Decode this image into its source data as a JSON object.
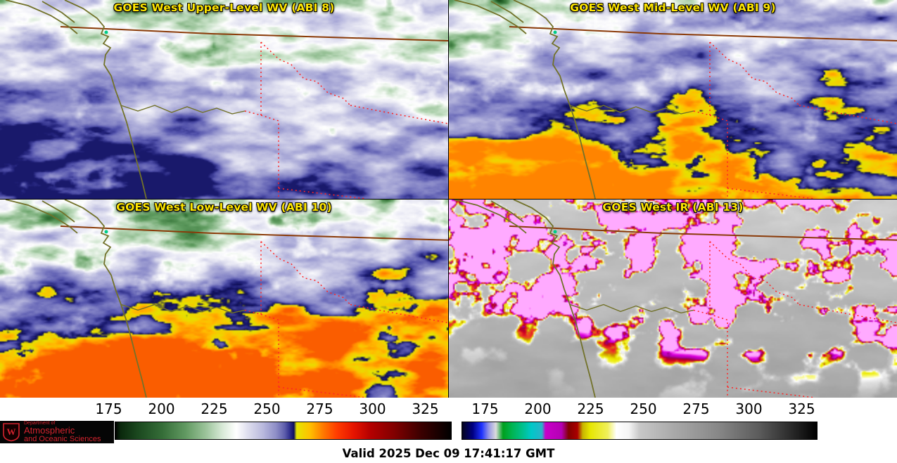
{
  "panels": [
    {
      "id": "abi8",
      "title": "GOES West Upper-Level WV (ABI 8)"
    },
    {
      "id": "abi9",
      "title": "GOES West Mid-Level WV (ABI 9)"
    },
    {
      "id": "abi10",
      "title": "GOES West Low-Level WV (ABI 10)"
    },
    {
      "id": "abi13",
      "title": "GOES West IR (ABI 13)"
    }
  ],
  "legend": {
    "left": {
      "ticks": [
        "175",
        "200",
        "225",
        "250",
        "275",
        "300",
        "325"
      ],
      "gradient": [
        [
          "0%",
          "#000000"
        ],
        [
          "1.5%",
          "#0a280c"
        ],
        [
          "7%",
          "#1c4a20"
        ],
        [
          "14%",
          "#356d38"
        ],
        [
          "21%",
          "#629a62"
        ],
        [
          "27%",
          "#9cc49b"
        ],
        [
          "32%",
          "#d9ead8"
        ],
        [
          "36%",
          "#ffffff"
        ],
        [
          "40%",
          "#dadaec"
        ],
        [
          "44%",
          "#b9b9dd"
        ],
        [
          "48%",
          "#8c8cc6"
        ],
        [
          "50.5%",
          "#5c5cab"
        ],
        [
          "52%",
          "#2e2e8e"
        ],
        [
          "53.2%",
          "#0f0f5e"
        ],
        [
          "54%",
          "#e6e600"
        ],
        [
          "58%",
          "#ffc000"
        ],
        [
          "62%",
          "#ff7800"
        ],
        [
          "66%",
          "#ff3c00"
        ],
        [
          "71%",
          "#e61400"
        ],
        [
          "76%",
          "#b40000"
        ],
        [
          "83%",
          "#820000"
        ],
        [
          "91%",
          "#3c0000"
        ],
        [
          "100%",
          "#000000"
        ]
      ]
    },
    "right": {
      "ticks": [
        "175",
        "200",
        "225",
        "250",
        "275",
        "300",
        "325"
      ],
      "gradient": [
        [
          "0%",
          "#05051e"
        ],
        [
          "3%",
          "#000082"
        ],
        [
          "5.5%",
          "#1e32ff"
        ],
        [
          "7.5%",
          "#9696e6"
        ],
        [
          "9.5%",
          "#dcdcdc"
        ],
        [
          "11.5%",
          "#00a01e"
        ],
        [
          "14%",
          "#00b450"
        ],
        [
          "17%",
          "#00c08c"
        ],
        [
          "19.5%",
          "#00c8c8"
        ],
        [
          "22.5%",
          "#28b4c8"
        ],
        [
          "23.5%",
          "#c800c8"
        ],
        [
          "28%",
          "#b400b4"
        ],
        [
          "30%",
          "#820000"
        ],
        [
          "32.5%",
          "#aa0000"
        ],
        [
          "34%",
          "#c8b400"
        ],
        [
          "36%",
          "#e6e600"
        ],
        [
          "41%",
          "#f0f05a"
        ],
        [
          "43.5%",
          "#ffffff"
        ],
        [
          "47%",
          "#f5f5f5"
        ],
        [
          "50%",
          "#c8c8c8"
        ],
        [
          "60%",
          "#a8a8a8"
        ],
        [
          "72%",
          "#888888"
        ],
        [
          "84%",
          "#5a5a5a"
        ],
        [
          "94%",
          "#232323"
        ],
        [
          "100%",
          "#000000"
        ]
      ]
    }
  },
  "logo": {
    "letter": "W",
    "dept": "Department of",
    "line1": "Atmospheric",
    "line2": "and Oceanic Sciences",
    "accent": "#d5232e"
  },
  "footer": {
    "valid_time": "Valid 2025 Dec 09 17:41:17 GMT"
  },
  "colors": {
    "panel_title": "#ffe600",
    "state_border": "#ff2525",
    "coastline": "#72722a",
    "canada_border": "#8a3a08"
  }
}
